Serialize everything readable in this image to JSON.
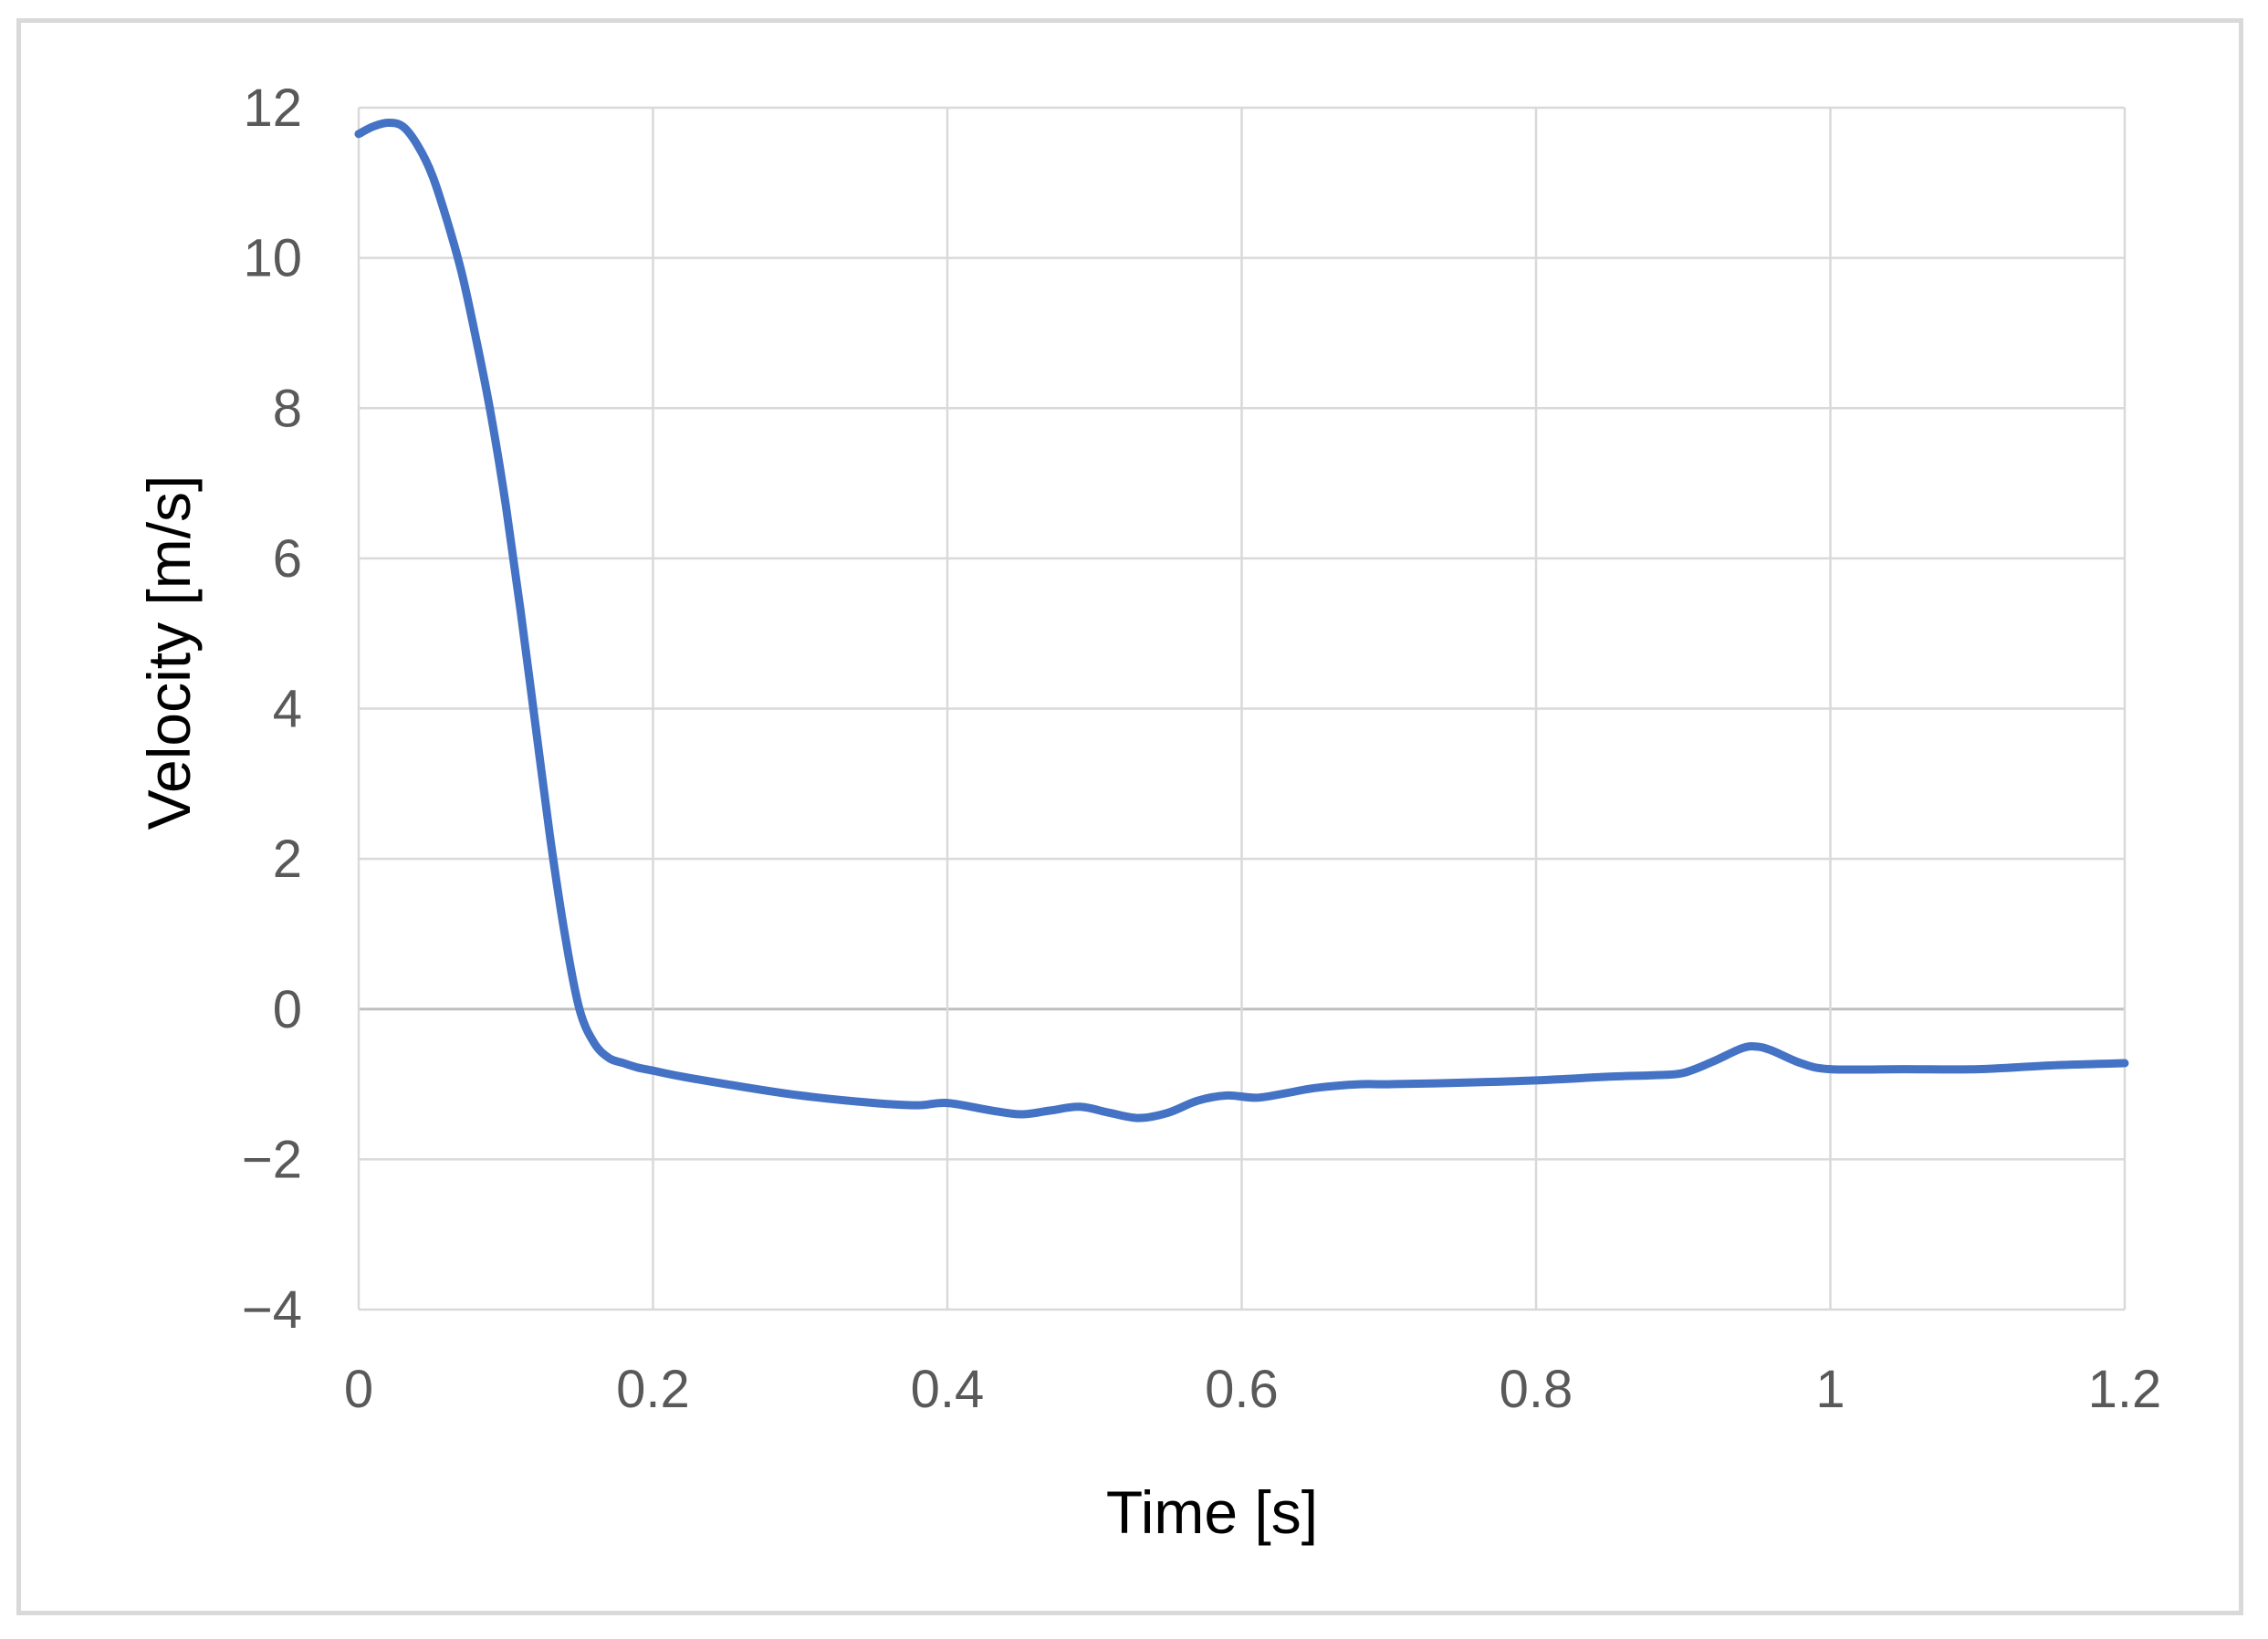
{
  "chart_data": {
    "type": "line",
    "title": "",
    "xlabel": "Time [s]",
    "ylabel": "Velocity [m/s]",
    "xlim": [
      0,
      1.2
    ],
    "ylim": [
      -4,
      12
    ],
    "x_ticks": [
      0,
      0.2,
      0.4,
      0.6,
      0.8,
      1,
      1.2
    ],
    "x_tick_labels": [
      "0",
      "0.2",
      "0.4",
      "0.6",
      "0.8",
      "1",
      "1.2"
    ],
    "y_ticks": [
      -4,
      -2,
      0,
      2,
      4,
      6,
      8,
      10,
      12
    ],
    "y_tick_labels": [
      "−4",
      "−2",
      "0",
      "2",
      "4",
      "6",
      "8",
      "10",
      "12"
    ],
    "grid": true,
    "legend": "none",
    "colors": {
      "line": "#4472c4",
      "grid": "#d9d9d9",
      "zero_line": "#bfbfbf",
      "tick_text": "#595959",
      "axis_title": "#000000"
    },
    "series": [
      {
        "x": [
          0,
          0.01,
          0.02,
          0.03,
          0.04,
          0.05,
          0.06,
          0.07,
          0.08,
          0.09,
          0.1,
          0.11,
          0.12,
          0.13,
          0.14,
          0.15,
          0.16,
          0.17,
          0.18,
          0.19,
          0.2,
          0.22,
          0.25,
          0.3,
          0.35,
          0.38,
          0.4,
          0.43,
          0.45,
          0.47,
          0.49,
          0.51,
          0.53,
          0.55,
          0.57,
          0.59,
          0.61,
          0.63,
          0.65,
          0.68,
          0.7,
          0.75,
          0.8,
          0.85,
          0.88,
          0.9,
          0.92,
          0.94,
          0.95,
          0.96,
          0.98,
          1.0,
          1.05,
          1.1,
          1.15,
          1.2
        ],
        "values": [
          11.65,
          11.75,
          11.8,
          11.75,
          11.5,
          11.1,
          10.5,
          9.8,
          8.9,
          7.9,
          6.7,
          5.3,
          3.8,
          2.3,
          1.0,
          0.0,
          -0.45,
          -0.65,
          -0.72,
          -0.78,
          -0.82,
          -0.9,
          -1.0,
          -1.15,
          -1.25,
          -1.28,
          -1.25,
          -1.35,
          -1.4,
          -1.35,
          -1.3,
          -1.38,
          -1.45,
          -1.38,
          -1.22,
          -1.15,
          -1.18,
          -1.12,
          -1.05,
          -1.0,
          -1.0,
          -0.98,
          -0.95,
          -0.9,
          -0.88,
          -0.85,
          -0.7,
          -0.52,
          -0.5,
          -0.55,
          -0.72,
          -0.8,
          -0.8,
          -0.8,
          -0.75,
          -0.72
        ]
      }
    ]
  }
}
